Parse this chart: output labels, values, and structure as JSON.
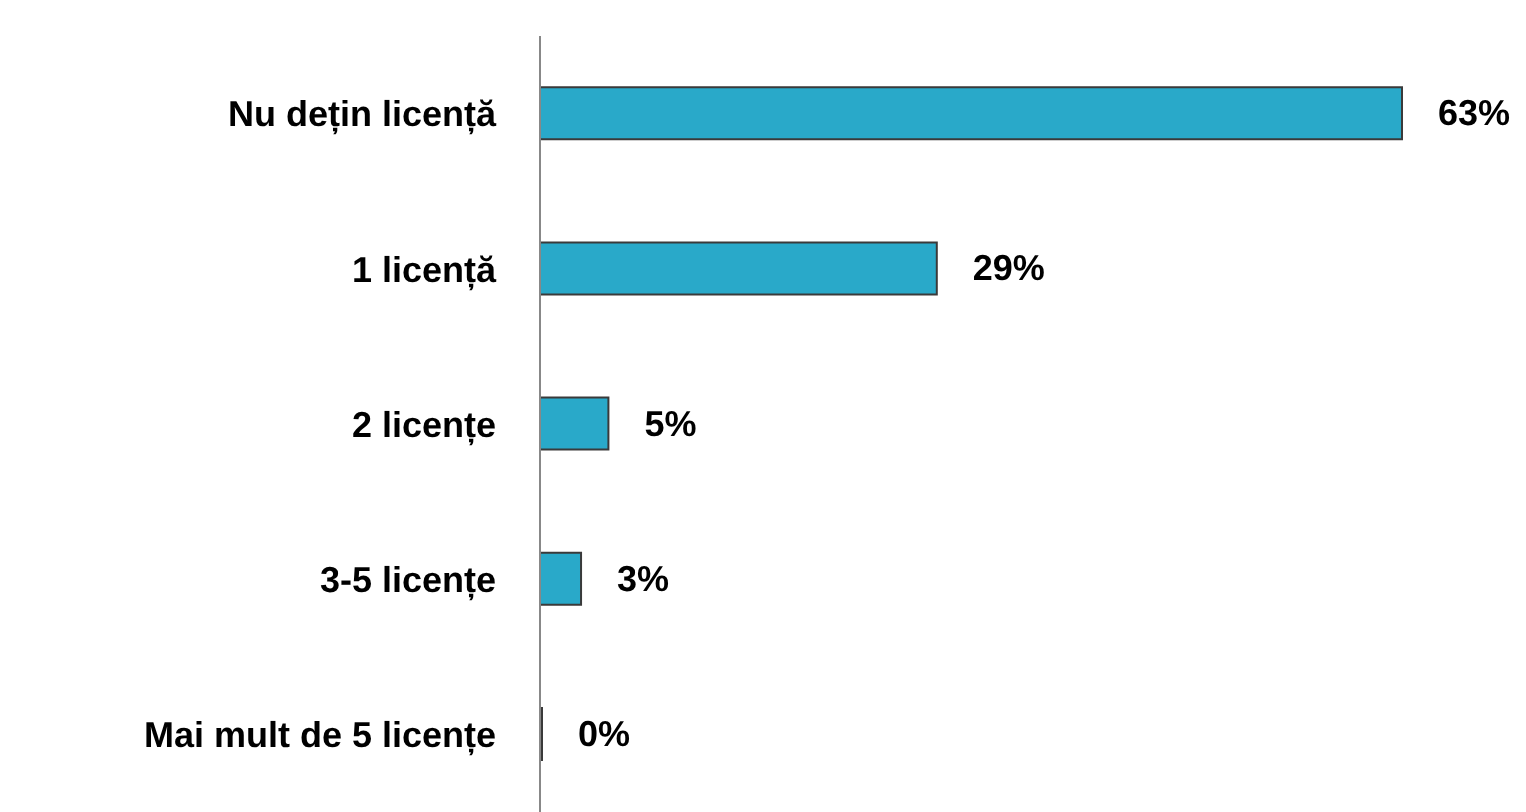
{
  "chart_data": {
    "type": "bar",
    "orientation": "horizontal",
    "categories": [
      "Nu dețin licență",
      "1 licență",
      "2 licențe",
      "3-5 licențe",
      "Mai mult de 5 licențe"
    ],
    "values": [
      63,
      29,
      5,
      3,
      0
    ],
    "value_labels": [
      "63%",
      "29%",
      "5%",
      "3%",
      "0%"
    ],
    "color": "#29a9c9"
  }
}
